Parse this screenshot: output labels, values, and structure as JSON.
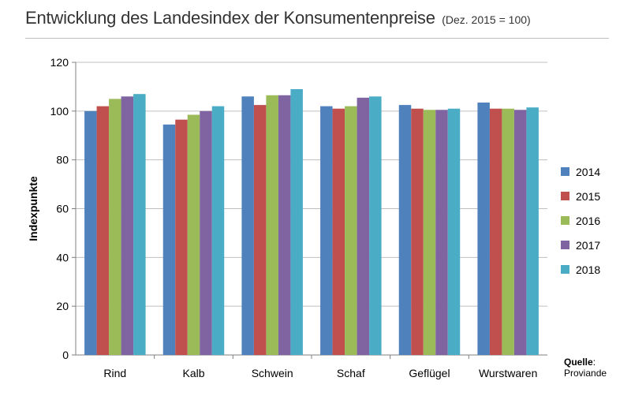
{
  "title": "Entwicklung des Landesindex der Konsumentenpreise",
  "subtitle": "(Dez. 2015 = 100)",
  "source": {
    "label": "Quelle",
    "colon": ":",
    "value": "Proviande"
  },
  "colors": {
    "2014": "#4f81bd",
    "2015": "#c0504d",
    "2016": "#9bbb59",
    "2017": "#8064a2",
    "2018": "#4bacc6"
  },
  "chart_data": {
    "type": "bar",
    "categories": [
      "Rind",
      "Kalb",
      "Schwein",
      "Schaf",
      "Geflügel",
      "Wurstwaren"
    ],
    "series": [
      {
        "name": "2014",
        "values": [
          100,
          94.5,
          106,
          102,
          102.5,
          103.5
        ]
      },
      {
        "name": "2015",
        "values": [
          102,
          96.5,
          102.5,
          101,
          101,
          101
        ]
      },
      {
        "name": "2016",
        "values": [
          105,
          98.5,
          106.5,
          102,
          100.5,
          101
        ]
      },
      {
        "name": "2017",
        "values": [
          106,
          100,
          106.5,
          105.5,
          100.5,
          100.5
        ]
      },
      {
        "name": "2018",
        "values": [
          107,
          102,
          109,
          106,
          101,
          101.5
        ]
      }
    ],
    "xlabel": "",
    "ylabel": "Indexpunkte",
    "ylim": [
      0,
      120
    ],
    "yticks": [
      0,
      20,
      40,
      60,
      80,
      100,
      120
    ],
    "grid": true,
    "legend": "right"
  }
}
